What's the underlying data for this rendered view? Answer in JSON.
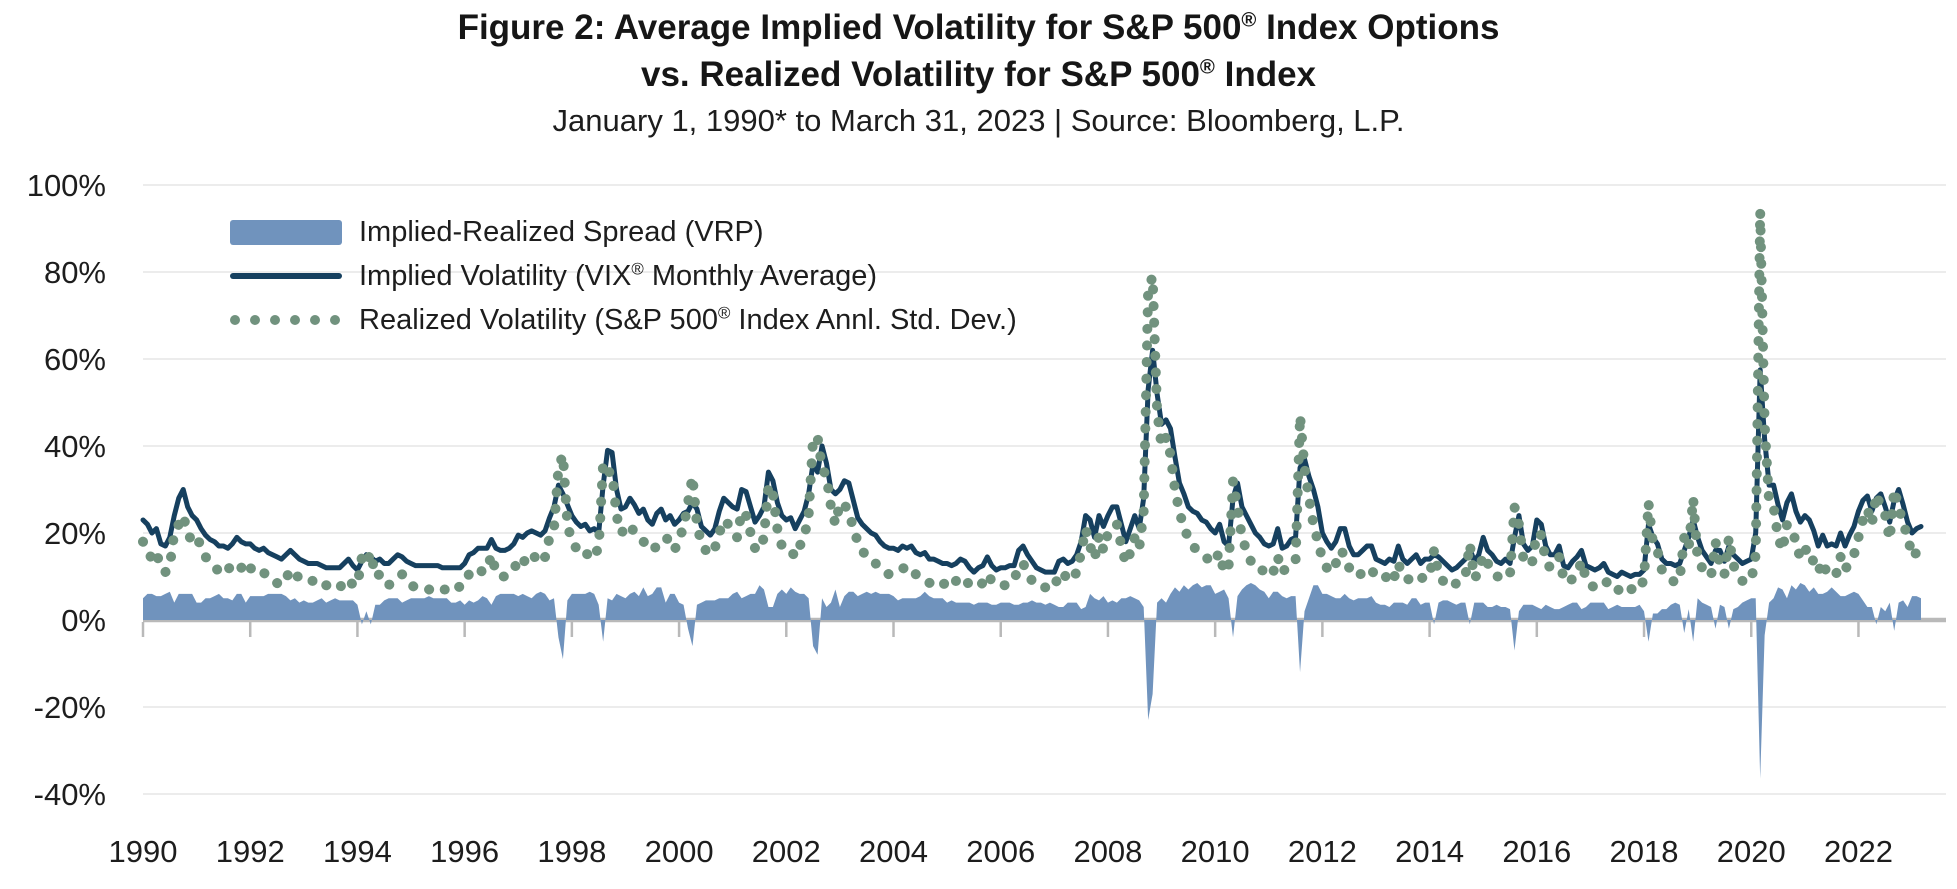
{
  "figure": {
    "title_line1": "Figure 2: Average Implied Volatility for S&P 500® Index Options",
    "title_line2": "vs. Realized Volatility for S&P 500® Index",
    "subtitle": "January 1, 1990* to March 31, 2023 | Source: Bloomberg, L.P."
  },
  "legend": {
    "items": [
      {
        "label": "Implied-Realized Spread (VRP)",
        "swatch": "area",
        "color": "#7093bd"
      },
      {
        "label": "Implied Volatility (VIX® Monthly Average)",
        "swatch": "line",
        "color": "#16405f"
      },
      {
        "label": "Realized Volatility (S&P 500® Index Annl. Std. Dev.)",
        "swatch": "dots",
        "color": "#71927e"
      }
    ]
  },
  "colors": {
    "spread_area": "#7093bd",
    "implied_line": "#16405f",
    "realized_dots": "#71927e",
    "gridline": "#ececec",
    "zero_axis": "#b9b9b9",
    "text": "#1d1d1d"
  },
  "chart_data": {
    "type": "line",
    "description": "Monthly series, January 1990 to March 2023; values are percent annualized volatility",
    "x": {
      "start_year": 1990,
      "start_month": 1,
      "end_year": 2023,
      "end_month": 3,
      "points": 399
    },
    "xticks": [
      {
        "label": "1990",
        "year": 1990
      },
      {
        "label": "1992",
        "year": 1992
      },
      {
        "label": "1994",
        "year": 1994
      },
      {
        "label": "1996",
        "year": 1996
      },
      {
        "label": "1998",
        "year": 1998
      },
      {
        "label": "2000",
        "year": 2000
      },
      {
        "label": "2002",
        "year": 2002
      },
      {
        "label": "2004",
        "year": 2004
      },
      {
        "label": "2006",
        "year": 2006
      },
      {
        "label": "2008",
        "year": 2008
      },
      {
        "label": "2010",
        "year": 2010
      },
      {
        "label": "2012",
        "year": 2012
      },
      {
        "label": "2014",
        "year": 2014
      },
      {
        "label": "2016",
        "year": 2016
      },
      {
        "label": "2018",
        "year": 2018
      },
      {
        "label": "2020",
        "year": 2020
      },
      {
        "label": "2022",
        "year": 2022
      }
    ],
    "yticks": [
      {
        "label": "100%",
        "value": 100
      },
      {
        "label": "80%",
        "value": 80
      },
      {
        "label": "60%",
        "value": 60
      },
      {
        "label": "40%",
        "value": 40
      },
      {
        "label": "20%",
        "value": 20
      },
      {
        "label": "0%",
        "value": 0
      },
      {
        "label": "-20%",
        "value": -20
      },
      {
        "label": "-40%",
        "value": -40
      }
    ],
    "ylim": [
      -40,
      100
    ],
    "grid": "horizontal",
    "legend_position": "top-left-inside",
    "series": [
      {
        "name": "Implied-Realized Spread (VRP)",
        "type": "area",
        "color": "#7093bd",
        "values_derived": "implied_minus_realized"
      },
      {
        "name": "Implied Volatility (VIX® Monthly Average)",
        "type": "line",
        "color": "#16405f",
        "values_by_year": {
          "1990": [
            23,
            22,
            20,
            21,
            17.5,
            17,
            19,
            24,
            28,
            30,
            26,
            24
          ],
          "1991": [
            23,
            21,
            19.5,
            18.5,
            18,
            17,
            17,
            16.5,
            17.5,
            19,
            18,
            17.5
          ],
          "1992": [
            17.5,
            16.5,
            16,
            16.5,
            15.5,
            15,
            14.5,
            14,
            15,
            16,
            15,
            14
          ],
          "1993": [
            13.5,
            13,
            13,
            13,
            12.5,
            12,
            12,
            12,
            12,
            13,
            14,
            12.5
          ],
          "1994": [
            11.5,
            13.5,
            15,
            14.5,
            13.5,
            14,
            13,
            13,
            14,
            15,
            14.5,
            13.5
          ],
          "1995": [
            13,
            12.5,
            12.5,
            12.5,
            12.5,
            12.5,
            12.5,
            12,
            12,
            12,
            12,
            12
          ],
          "1996": [
            13,
            15,
            15.5,
            16.5,
            16.5,
            16.5,
            18.5,
            16.5,
            16,
            16,
            16.5,
            17.5
          ],
          "1997": [
            19.5,
            19,
            20,
            20.5,
            20,
            19.5,
            20.5,
            23.5,
            26,
            31,
            29,
            26.5
          ],
          "1998": [
            24,
            22.5,
            21.5,
            22,
            20.5,
            21,
            20,
            31,
            39,
            38.5,
            30,
            25.5
          ],
          "1999": [
            26,
            28,
            26.5,
            24.5,
            25.5,
            23,
            22,
            24.5,
            25.5,
            23,
            24,
            22
          ],
          "2000": [
            23,
            24.5,
            25,
            27,
            25.5,
            21.5,
            20.5,
            19.5,
            21,
            25,
            28,
            27
          ],
          "2001": [
            26,
            25.5,
            30,
            29.5,
            26,
            22.5,
            24,
            26,
            34,
            32,
            27,
            24
          ],
          "2002": [
            23,
            23.5,
            21,
            23,
            25,
            29,
            36,
            34,
            40,
            36,
            30,
            29
          ],
          "2003": [
            30,
            32,
            31.5,
            27.5,
            23.5,
            22,
            21,
            20,
            19.5,
            18,
            17,
            16.5
          ],
          "2004": [
            16.5,
            16,
            17,
            16.5,
            17,
            15.5,
            15,
            15.5,
            14,
            14,
            13.5,
            13
          ],
          "2005": [
            13,
            12.5,
            13,
            14,
            13.5,
            12,
            11,
            12,
            12.5,
            14.5,
            12.5,
            11.5
          ],
          "2006": [
            12,
            12,
            12.5,
            12.5,
            16,
            17,
            15,
            13.5,
            12,
            11.5,
            11,
            11
          ],
          "2007": [
            11,
            13.5,
            14,
            13,
            13.5,
            15,
            18,
            24,
            23,
            19,
            24,
            21.5
          ],
          "2008": [
            24,
            26,
            26,
            22,
            18,
            21,
            24,
            21,
            28,
            53,
            62,
            52
          ],
          "2009": [
            45,
            46,
            44,
            37.5,
            31.5,
            29,
            26,
            25,
            24.5,
            23,
            22.5,
            21
          ],
          "2010": [
            20,
            22,
            18,
            17,
            28,
            31.5,
            26,
            24,
            22,
            20,
            19,
            17.5
          ],
          "2011": [
            17,
            17.5,
            21,
            16.5,
            17,
            18.5,
            19,
            35,
            37,
            33,
            30,
            26
          ],
          "2012": [
            20,
            18,
            16.5,
            18,
            21,
            21,
            17,
            15,
            15,
            16,
            17,
            17
          ],
          "2013": [
            14,
            13.5,
            13,
            14,
            13.5,
            17,
            14,
            13,
            14,
            15,
            13,
            14
          ],
          "2014": [
            14,
            15,
            14.5,
            13.5,
            12.5,
            11.5,
            12,
            13,
            14,
            16.5,
            13.5,
            15
          ],
          "2015": [
            19,
            16,
            15,
            13.5,
            13,
            14,
            13,
            19,
            24,
            17.5,
            16,
            17
          ],
          "2016": [
            23,
            22,
            17,
            15,
            15,
            17,
            12.5,
            12,
            13.5,
            14.5,
            16,
            12.5
          ],
          "2017": [
            12,
            11.5,
            12,
            13,
            11,
            10.5,
            10,
            11,
            10.5,
            10,
            10.5,
            10.5
          ],
          "2018": [
            11.5,
            22,
            19,
            17.5,
            14,
            13,
            13,
            12.5,
            13,
            16,
            19,
            23
          ],
          "2019": [
            19,
            16,
            14.5,
            13,
            16,
            16,
            13.5,
            17,
            15,
            14,
            13,
            13.5
          ],
          "2020": [
            14,
            20,
            57.5,
            41.5,
            31,
            31,
            26.5,
            23,
            27,
            29,
            25,
            22.5
          ],
          "2021": [
            24,
            23,
            20.5,
            17,
            19.5,
            17,
            17.5,
            17,
            20,
            17,
            19.5,
            21.5
          ],
          "2022": [
            25,
            27.5,
            28.5,
            25,
            28,
            29,
            26,
            22.5,
            27.5,
            30,
            26.5,
            22.5
          ],
          "2023": [
            20,
            21,
            21.5
          ]
        }
      },
      {
        "name": "Realized Volatility (S&P 500® Index Annl. Std. Dev.)",
        "type": "dotted-line",
        "color": "#71927e",
        "values_by_year": {
          "1990": [
            18,
            16,
            14,
            15.5,
            12,
            11,
            12.5,
            20,
            22,
            24,
            20,
            18
          ],
          "1991": [
            19,
            17,
            14.5,
            13.5,
            12.5,
            11,
            12,
            11.5,
            13,
            13,
            12,
            13.5
          ],
          "1992": [
            12,
            11,
            10.5,
            11,
            9.5,
            9,
            8.5,
            8,
            9.5,
            11.5,
            10,
            10
          ],
          "1993": [
            9,
            9,
            9,
            8.5,
            7.5,
            8,
            7.5,
            7,
            7.5,
            8.5,
            9.5,
            8
          ],
          "1994": [
            8,
            14.5,
            13,
            15.5,
            10,
            10.5,
            8.5,
            8,
            9,
            10,
            10.5,
            9
          ],
          "1995": [
            8,
            7.5,
            7.5,
            7.5,
            7,
            7.5,
            7.5,
            7,
            7,
            8,
            8,
            7.5
          ],
          "1996": [
            9.5,
            10.5,
            11.5,
            12,
            11,
            11.5,
            15,
            11,
            10,
            10,
            10.5,
            11.5
          ],
          "1997": [
            14,
            13,
            14.5,
            15.5,
            14,
            13,
            14.5,
            19,
            21,
            35,
            38,
            22
          ],
          "1998": [
            18,
            16.5,
            15.5,
            16,
            14,
            15,
            16.5,
            36,
            34,
            34,
            24,
            20
          ],
          "1999": [
            21,
            22,
            20,
            19,
            18,
            17.5,
            16,
            17,
            18,
            19,
            18,
            16
          ],
          "2000": [
            19,
            21,
            27,
            33,
            22,
            17.5,
            16,
            15,
            16.5,
            20,
            23,
            22
          ],
          "2001": [
            20,
            19,
            25,
            24,
            20,
            16.5,
            16,
            19,
            31,
            29,
            21,
            17
          ],
          "2002": [
            17,
            16,
            14.5,
            17,
            19,
            24,
            42,
            42,
            35,
            33,
            26,
            22
          ],
          "2003": [
            27,
            26.5,
            25,
            21,
            18,
            16,
            14.5,
            14,
            13,
            12,
            11,
            10.5
          ],
          "2004": [
            11,
            11.5,
            12,
            11.5,
            12,
            10.5,
            9.5,
            9,
            8.5,
            9,
            8.5,
            8
          ],
          "2005": [
            9,
            8,
            9,
            10,
            9.5,
            8,
            7.5,
            8,
            8.5,
            10.5,
            9,
            8
          ],
          "2006": [
            8,
            8,
            8.5,
            9,
            12.5,
            13,
            11,
            9,
            8,
            7.5,
            7.5,
            7
          ],
          "2007": [
            7.5,
            10.5,
            11,
            9,
            9.5,
            11,
            15.5,
            21,
            17,
            14,
            19.5,
            16
          ],
          "2008": [
            20,
            21.5,
            22,
            17,
            13,
            15.5,
            19,
            16.5,
            25,
            76,
            79,
            48
          ],
          "2009": [
            40,
            42,
            38,
            30,
            25,
            21,
            19,
            17,
            16,
            15.5,
            14.5,
            13
          ],
          "2010": [
            14,
            15.5,
            11,
            12,
            32,
            26,
            19,
            16,
            13.5,
            12,
            12,
            11
          ],
          "2011": [
            12,
            11,
            14.5,
            11,
            12,
            13,
            13.5,
            47,
            35,
            28,
            22,
            18
          ],
          "2012": [
            14,
            12,
            11,
            13,
            16,
            15,
            12,
            10.5,
            10,
            11,
            12,
            11.5
          ],
          "2013": [
            10,
            10,
            9.5,
            11,
            9.5,
            13,
            10,
            9.5,
            9,
            10,
            9.5,
            10
          ],
          "2014": [
            10,
            16,
            10.5,
            9,
            8,
            7.5,
            8.5,
            9,
            10,
            17.5,
            9.5,
            11
          ],
          "2015": [
            15,
            13,
            12,
            10,
            10,
            11,
            10.5,
            26,
            22,
            14,
            12.5,
            13.5
          ],
          "2016": [
            20,
            19.5,
            13.5,
            12,
            12.5,
            14.5,
            9.5,
            8.5,
            9.5,
            10.5,
            13.5,
            9.5
          ],
          "2017": [
            8,
            7.5,
            8,
            9,
            8.5,
            7.5,
            6.5,
            8,
            7.5,
            7,
            7.5,
            7
          ],
          "2018": [
            9.5,
            27,
            17.5,
            16,
            11.5,
            10.5,
            9.5,
            8.5,
            9.5,
            19,
            16.5,
            28
          ],
          "2019": [
            14,
            12,
            11,
            10,
            18,
            12.5,
            10.5,
            19,
            12.5,
            11,
            9,
            9
          ],
          "2020": [
            9,
            15,
            94,
            45,
            27,
            26,
            19,
            16,
            22,
            21,
            18,
            14
          ],
          "2021": [
            16,
            16.5,
            13,
            11,
            13.5,
            10.5,
            10,
            10.5,
            14.5,
            11.5,
            13.5,
            15
          ],
          "2022": [
            19,
            23,
            25.5,
            22,
            29,
            26,
            24,
            18.5,
            30,
            26,
            22,
            19.5
          ],
          "2023": [
            14.5,
            15.5,
            16.5
          ]
        }
      }
    ]
  }
}
